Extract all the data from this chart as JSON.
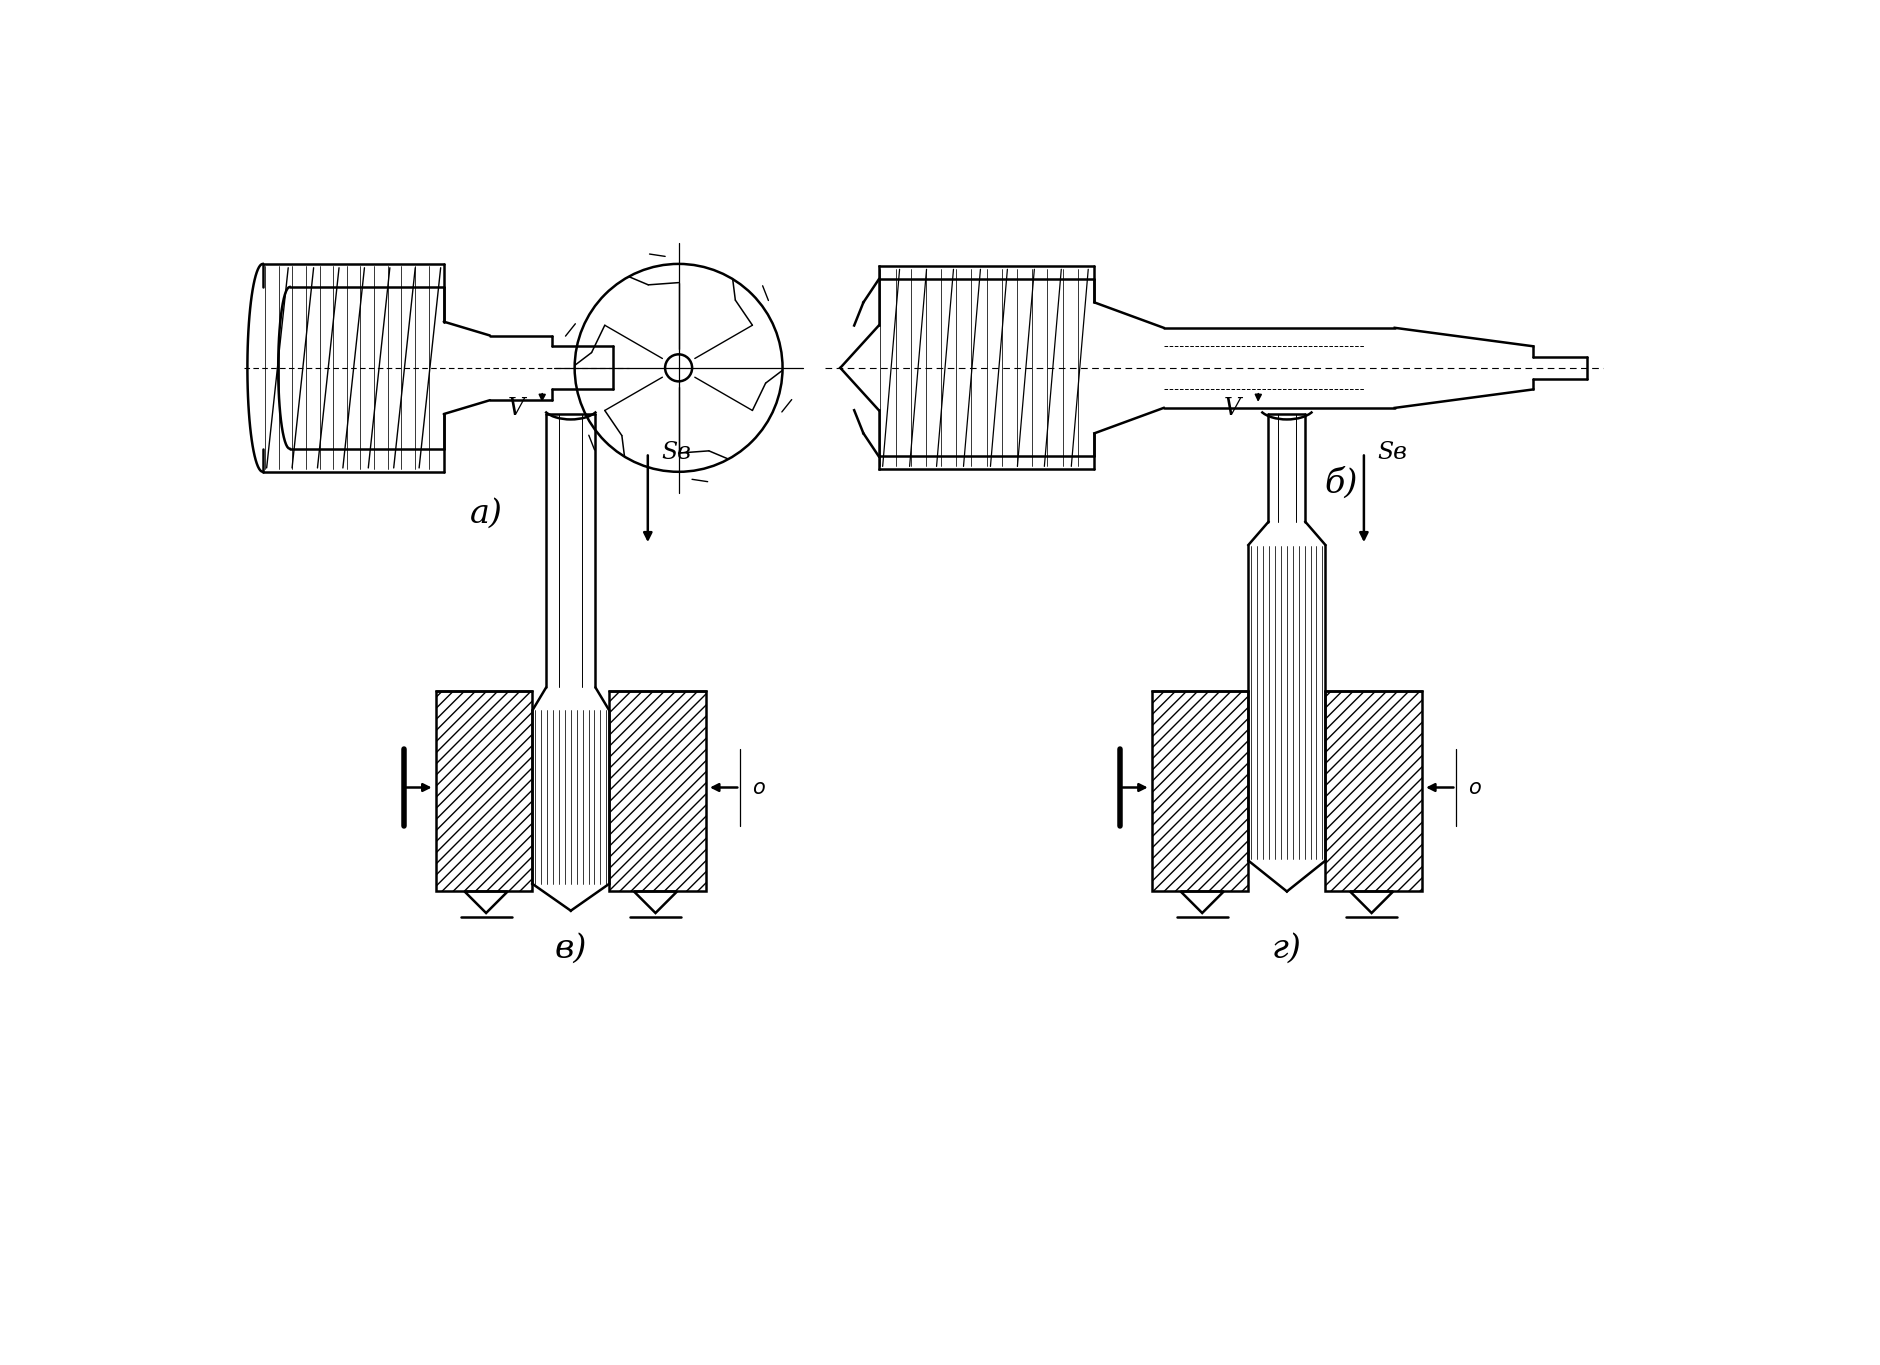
{
  "background_color": "#ffffff",
  "label_a": "а)",
  "label_b": "б)",
  "label_v": "в)",
  "label_g": "г)",
  "label_V": "V",
  "label_Sv": "Sв",
  "line_color": "#000000",
  "line_width": 1.8,
  "fig_width": 18.8,
  "fig_height": 13.65
}
